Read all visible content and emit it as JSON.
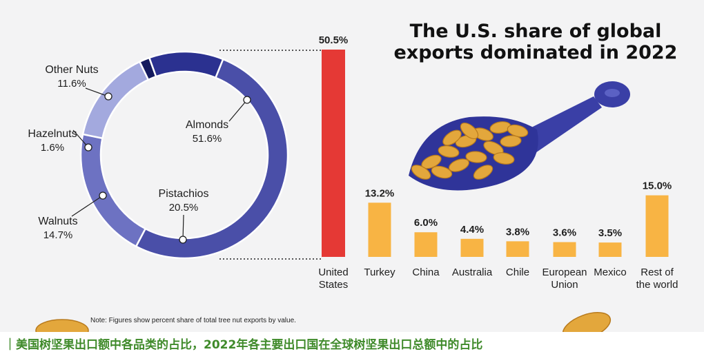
{
  "title_line1": "The U.S. share of global",
  "title_line2": "exports dominated in 2022",
  "note": "Note: Figures show percent share of total tree nut exports by value.",
  "caption": "｜美国树坚果出口额中各品类的占比，2022年各主要出口国在全球树坚果出口总额中的占比",
  "colors": {
    "almonds": "#4a4fa8",
    "pistachios": "#6d72c2",
    "walnuts": "#a3a9de",
    "hazelnuts": "#141a5e",
    "other_nuts": "#2b3190",
    "us_bar": "#e53935",
    "other_bars": "#f8b444"
  },
  "chart_data": [
    {
      "type": "pie",
      "style": "donut",
      "slices": [
        {
          "label": "Almonds",
          "value": 51.6,
          "value_label": "51.6%"
        },
        {
          "label": "Pistachios",
          "value": 20.5,
          "value_label": "20.5%"
        },
        {
          "label": "Walnuts",
          "value": 14.7,
          "value_label": "14.7%"
        },
        {
          "label": "Hazelnuts",
          "value": 1.6,
          "value_label": "1.6%"
        },
        {
          "label": "Other Nuts",
          "value": 11.6,
          "value_label": "11.6%"
        }
      ]
    },
    {
      "type": "bar",
      "categories": [
        "United States",
        "Turkey",
        "China",
        "Australia",
        "Chile",
        "European Union",
        "Mexico",
        "Rest of the world"
      ],
      "category_lines": [
        [
          "United",
          "States"
        ],
        [
          "Turkey"
        ],
        [
          "China"
        ],
        [
          "Australia"
        ],
        [
          "Chile"
        ],
        [
          "European",
          "Union"
        ],
        [
          "Mexico"
        ],
        [
          "Rest of",
          "the world"
        ]
      ],
      "values": [
        50.5,
        13.2,
        6.0,
        4.4,
        3.8,
        3.6,
        3.5,
        15.0
      ],
      "value_labels": [
        "50.5%",
        "13.2%",
        "6.0%",
        "4.4%",
        "3.8%",
        "3.6%",
        "3.5%",
        "15.0%"
      ],
      "ylim": [
        0,
        50.5
      ],
      "grid": false
    }
  ]
}
